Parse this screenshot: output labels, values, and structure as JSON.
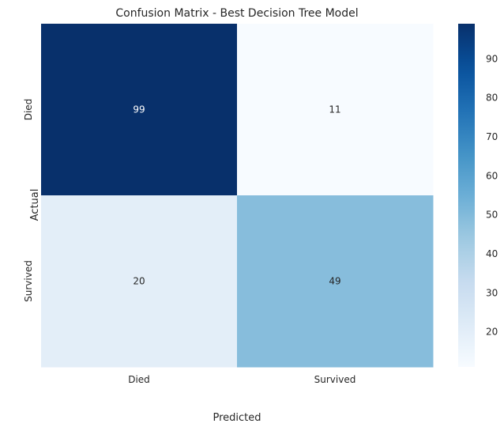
{
  "chart_data": {
    "type": "heatmap",
    "title": "Confusion Matrix - Best Decision Tree Model",
    "xlabel": "Predicted",
    "ylabel": "Actual",
    "x_categories": [
      "Died",
      "Survived"
    ],
    "y_categories": [
      "Died",
      "Survived"
    ],
    "values": [
      [
        99,
        11
      ],
      [
        20,
        49
      ]
    ],
    "colormap": "Blues",
    "colorbar": {
      "min": 11,
      "max": 99,
      "ticks": [
        20,
        30,
        40,
        50,
        60,
        70,
        80,
        90
      ]
    },
    "colors": {
      "low": "#f7fbff",
      "high": "#08306b",
      "text": "#262626"
    }
  }
}
